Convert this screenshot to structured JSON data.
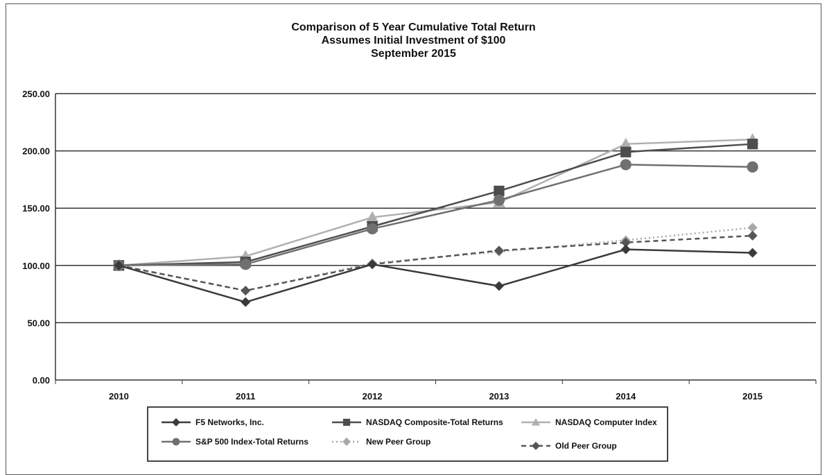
{
  "chart_data": {
    "type": "line",
    "title": "Comparison of 5 Year Cumulative Total Return",
    "subtitle_lines": [
      "Assumes Initial Investment of $100",
      "September 2015"
    ],
    "xlabel": "",
    "ylabel": "",
    "categories": [
      "2010",
      "2011",
      "2012",
      "2013",
      "2014",
      "2015"
    ],
    "ylim": [
      0,
      250
    ],
    "yticks": [
      "0.00",
      "50.00",
      "100.00",
      "150.00",
      "200.00",
      "250.00"
    ],
    "grid": true,
    "legend_position": "bottom",
    "series": [
      {
        "name": "F5 Networks, Inc.",
        "values": [
          100,
          68,
          101,
          82,
          114,
          111
        ],
        "color": "#3a3a3a",
        "marker": "diamond",
        "dash": "solid"
      },
      {
        "name": "NASDAQ Composite-Total Returns",
        "values": [
          100,
          103,
          134,
          165,
          199,
          206
        ],
        "color": "#4d4d4d",
        "marker": "square",
        "dash": "solid"
      },
      {
        "name": "NASDAQ Computer Index",
        "values": [
          100,
          108,
          142,
          155,
          206,
          210
        ],
        "color": "#b0b0b0",
        "marker": "triangle",
        "dash": "solid"
      },
      {
        "name": "S&P 500 Index-Total Returns",
        "values": [
          100,
          101,
          132,
          157,
          188,
          186
        ],
        "color": "#707070",
        "marker": "circle",
        "dash": "solid"
      },
      {
        "name": "New Peer Group",
        "values": [
          100,
          78,
          102,
          112,
          122,
          133
        ],
        "color": "#a8a8a8",
        "marker": "diamond",
        "dash": "dotted"
      },
      {
        "name": "Old Peer Group",
        "values": [
          100,
          78,
          101,
          113,
          120,
          126
        ],
        "color": "#555555",
        "marker": "diamond",
        "dash": "dashed"
      }
    ]
  }
}
